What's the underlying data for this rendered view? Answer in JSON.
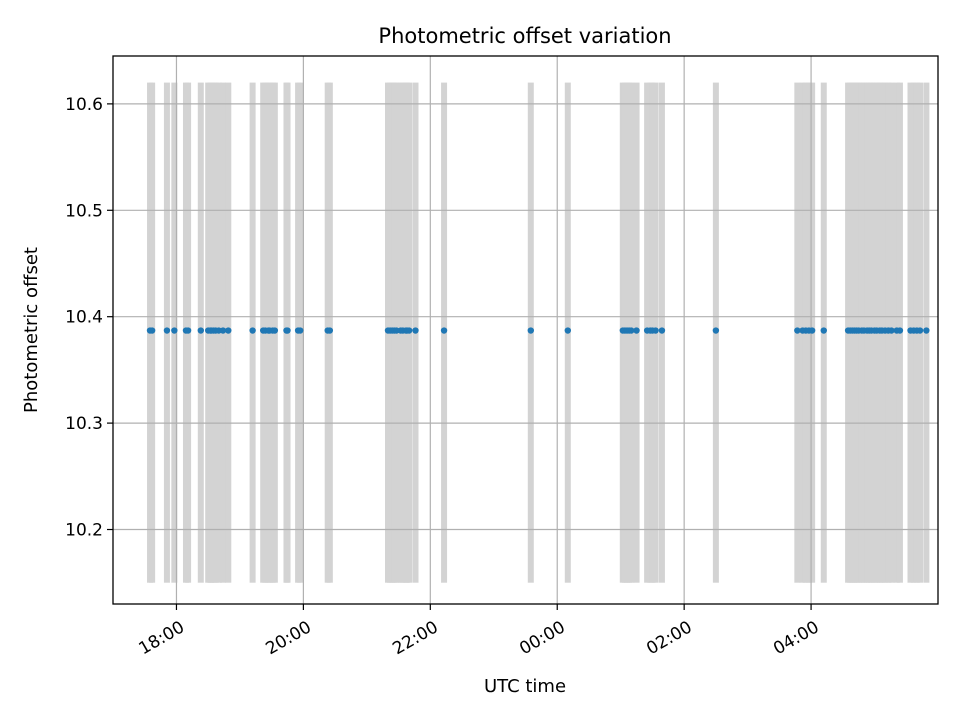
{
  "chart_data": {
    "type": "scatter",
    "title": "Photometric offset variation",
    "xlabel": "UTC time",
    "ylabel": "Photometric offset",
    "x_axis_type": "time",
    "xlim": [
      "17:00",
      "30:00"
    ],
    "ylim": [
      10.13,
      10.645
    ],
    "x_ticks": [
      "18:00",
      "20:00",
      "22:00",
      "00:00",
      "02:00",
      "04:00"
    ],
    "y_ticks": [
      10.2,
      10.3,
      10.4,
      10.5,
      10.6
    ],
    "grid": true,
    "legend": "none",
    "colors": {
      "points": "#1f77b4",
      "bands": "#d3d3d3",
      "grid": "#b0b0b0"
    },
    "band_range": [
      10.15,
      10.62
    ],
    "point_value": 10.387,
    "x": [
      "17:35",
      "17:37",
      "17:51",
      "17:58",
      "18:09",
      "18:11",
      "18:23",
      "18:30",
      "18:32",
      "18:33",
      "18:35",
      "18:37",
      "18:40",
      "18:44",
      "18:49",
      "19:12",
      "19:22",
      "19:24",
      "19:27",
      "19:28",
      "19:31",
      "19:33",
      "19:44",
      "19:45",
      "19:55",
      "19:57",
      "20:23",
      "20:25",
      "21:20",
      "21:22",
      "21:24",
      "21:26",
      "21:28",
      "21:32",
      "21:34",
      "21:37",
      "21:38",
      "21:40",
      "21:46",
      "22:13",
      "23:35",
      "24:10",
      "25:02",
      "25:04",
      "25:06",
      "25:08",
      "25:10",
      "25:15",
      "25:25",
      "25:28",
      "25:30",
      "25:33",
      "25:39",
      "26:30",
      "27:47",
      "27:52",
      "27:55",
      "27:58",
      "28:01",
      "28:12",
      "28:35",
      "28:37",
      "28:39",
      "28:41",
      "28:43",
      "28:45",
      "28:48",
      "28:50",
      "28:53",
      "28:55",
      "28:57",
      "29:00",
      "29:02",
      "29:05",
      "29:07",
      "29:10",
      "29:13",
      "29:16",
      "29:21",
      "29:24",
      "29:34",
      "29:37",
      "29:40",
      "29:43",
      "29:49"
    ]
  }
}
